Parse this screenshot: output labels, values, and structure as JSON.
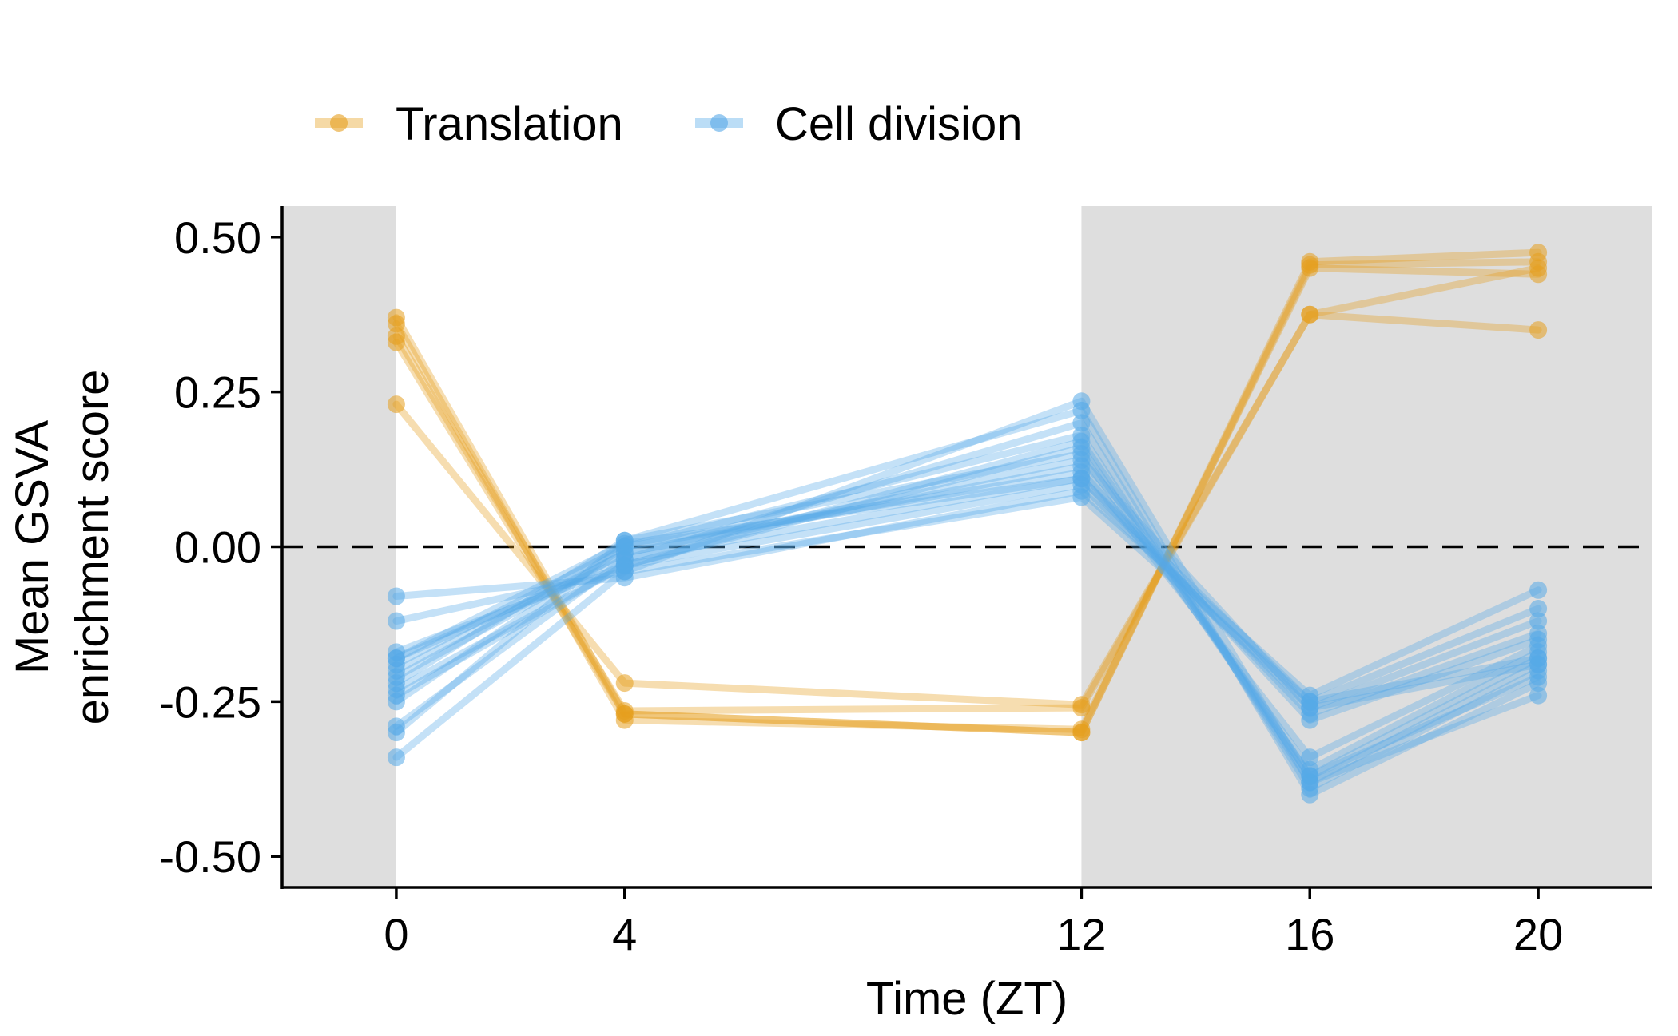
{
  "chart_data": {
    "type": "line",
    "xlabel": "Time (ZT)",
    "ylabel_lines": [
      "Mean GSVA",
      "enrichment score"
    ],
    "x_ticks": [
      0,
      4,
      12,
      16,
      20
    ],
    "y_ticks": [
      "0.50",
      "0.25",
      "0.00",
      "-0.25",
      "-0.50"
    ],
    "y_tick_values": [
      0.5,
      0.25,
      0.0,
      -0.25,
      -0.5
    ],
    "xlim": [
      -2,
      22
    ],
    "ylim": [
      -0.55,
      0.55
    ],
    "reference_line_y": 0,
    "shaded_x_ranges": [
      [
        -2,
        0
      ],
      [
        12,
        22
      ]
    ],
    "grid": false,
    "legend_position": "top",
    "colors": {
      "Translation": "#E69F1E",
      "Cell division": "#56A9E8",
      "shade": "#DEDEDE",
      "reference": "#000000"
    },
    "series_groups": [
      {
        "name": "Translation",
        "x": [
          0,
          4,
          12,
          16,
          20
        ],
        "lines": [
          [
            0.37,
            -0.27,
            -0.3,
            0.46,
            0.475
          ],
          [
            0.36,
            -0.28,
            -0.295,
            0.45,
            0.44
          ],
          [
            0.34,
            -0.265,
            -0.26,
            0.375,
            0.35
          ],
          [
            0.33,
            -0.27,
            -0.3,
            0.455,
            0.46
          ],
          [
            0.23,
            -0.22,
            -0.255,
            0.375,
            0.45
          ]
        ]
      },
      {
        "name": "Cell division",
        "x": [
          0,
          4,
          12,
          16,
          20
        ],
        "lines": [
          [
            -0.08,
            -0.05,
            0.09,
            -0.24,
            -0.07
          ],
          [
            -0.12,
            -0.04,
            0.08,
            -0.25,
            -0.1
          ],
          [
            -0.17,
            -0.03,
            0.1,
            -0.26,
            -0.12
          ],
          [
            -0.18,
            -0.02,
            0.11,
            -0.27,
            -0.14
          ],
          [
            -0.19,
            0.0,
            0.12,
            -0.28,
            -0.15
          ],
          [
            -0.2,
            -0.01,
            0.13,
            -0.34,
            -0.16
          ],
          [
            -0.22,
            0.01,
            0.15,
            -0.36,
            -0.17
          ],
          [
            -0.23,
            -0.03,
            0.16,
            -0.37,
            -0.18
          ],
          [
            -0.25,
            0.0,
            0.18,
            -0.38,
            -0.19
          ],
          [
            -0.29,
            -0.02,
            0.2,
            -0.39,
            -0.2
          ],
          [
            -0.3,
            0.01,
            0.22,
            -0.4,
            -0.22
          ],
          [
            -0.34,
            -0.04,
            0.235,
            -0.38,
            -0.24
          ],
          [
            -0.21,
            -0.01,
            0.14,
            -0.26,
            -0.19
          ],
          [
            -0.24,
            -0.03,
            0.17,
            -0.37,
            -0.21
          ],
          [
            -0.18,
            0.005,
            0.11,
            -0.25,
            -0.18
          ]
        ]
      }
    ]
  }
}
